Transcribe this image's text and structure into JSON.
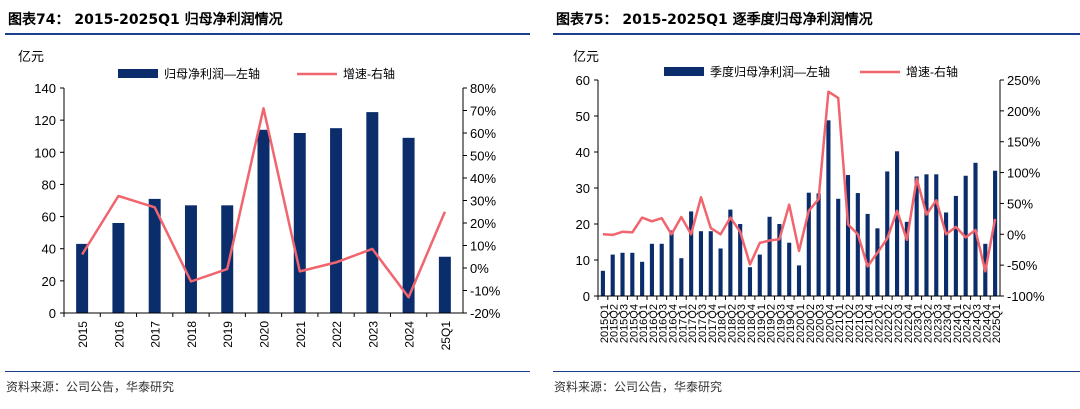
{
  "left": {
    "title": "图表74：  2015-2025Q1 归母净利润情况",
    "source": "资料来源：公司公告，华泰研究",
    "chart_data": {
      "type": "bar",
      "y_unit": "亿元",
      "categories": [
        "2015",
        "2016",
        "2017",
        "2018",
        "2019",
        "2020",
        "2021",
        "2022",
        "2023",
        "2024",
        "25Q1"
      ],
      "series": [
        {
          "name": "归母净利润—左轴",
          "type": "bar",
          "axis": "left",
          "color": "#0c2d6b",
          "values": [
            43,
            56,
            71,
            67,
            67,
            114,
            112,
            115,
            125,
            109,
            35
          ]
        },
        {
          "name": "增速-右轴",
          "type": "line",
          "axis": "right",
          "color": "#f0656e",
          "values": [
            6,
            32,
            27,
            -6,
            -0.5,
            71,
            -1.5,
            2.5,
            8.5,
            -13,
            25
          ]
        }
      ],
      "ylim_left": [
        0,
        140
      ],
      "yticks_left": [
        0,
        20,
        40,
        60,
        80,
        100,
        120,
        140
      ],
      "ylim_right": [
        -20,
        80
      ],
      "yticks_right": [
        "-20%",
        "-10%",
        "0%",
        "10%",
        "20%",
        "30%",
        "40%",
        "50%",
        "60%",
        "70%",
        "80%"
      ],
      "legend": "top"
    }
  },
  "right": {
    "title": "图表75：  2015-2025Q1 逐季度归母净利润情况",
    "source": "资料来源：公司公告，华泰研究",
    "chart_data": {
      "type": "bar",
      "y_unit": "亿元",
      "categories": [
        "2015Q1",
        "2015Q2",
        "2015Q3",
        "2015Q4",
        "2016Q1",
        "2016Q2",
        "2016Q3",
        "2016Q4",
        "2017Q1",
        "2017Q2",
        "2017Q3",
        "2017Q4",
        "2018Q1",
        "2018Q2",
        "2018Q3",
        "2018Q4",
        "2019Q1",
        "2019Q2",
        "2019Q3",
        "2019Q4",
        "2020Q1",
        "2020Q2",
        "2020Q3",
        "2020Q4",
        "2021Q1",
        "2021Q2",
        "2021Q3",
        "2021Q4",
        "2022Q1",
        "2022Q2",
        "2022Q3",
        "2022Q4",
        "2023Q1",
        "2023Q2",
        "2023Q3",
        "2023Q4",
        "2024Q1",
        "2024Q2",
        "2024Q3",
        "2024Q4",
        "2025Q1"
      ],
      "series": [
        {
          "name": "季度归母净利润—左轴",
          "type": "bar",
          "axis": "left",
          "color": "#0c2d6b",
          "values": [
            7,
            11.5,
            12,
            12,
            9.5,
            14.5,
            14.5,
            18.2,
            10.5,
            23.5,
            18,
            18,
            13.2,
            24,
            20,
            8,
            11.5,
            22,
            20,
            14.8,
            8.5,
            28.7,
            28.5,
            48.8,
            27,
            33.6,
            28.6,
            22.8,
            18.8,
            34.6,
            40.2,
            20.6,
            33.2,
            33.8,
            33.8,
            23.2,
            27.8,
            33.4,
            37,
            14.5,
            34.8
          ]
        },
        {
          "name": "增速-右轴",
          "type": "line",
          "axis": "right",
          "color": "#f0656e",
          "values": [
            0,
            -1,
            4,
            3,
            27,
            21,
            26,
            0,
            28,
            0,
            60,
            10,
            0,
            27,
            4,
            -49,
            -14,
            -10,
            -8,
            48,
            -27,
            38,
            57,
            231,
            221,
            16,
            0,
            -52,
            -30,
            -7,
            38,
            -9,
            90,
            32,
            55,
            0,
            12,
            -5,
            7,
            -60,
            25
          ]
        }
      ],
      "ylim_left": [
        0,
        60
      ],
      "yticks_left": [
        0,
        10,
        20,
        30,
        40,
        50,
        60
      ],
      "ylim_right": [
        -100,
        250
      ],
      "yticks_right": [
        "-100%",
        "-50%",
        "0%",
        "50%",
        "100%",
        "150%",
        "200%",
        "250%"
      ],
      "legend": "top"
    }
  }
}
